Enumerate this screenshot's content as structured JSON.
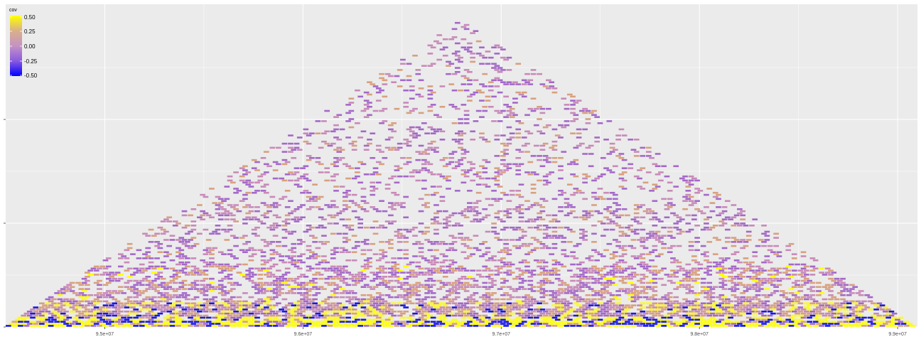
{
  "chart_data": {
    "type": "heatmap",
    "subtype": "triangular-ld-heatmap",
    "title": "",
    "xlabel": "",
    "ylabel": "",
    "x_ticks": [
      {
        "value": 95000000,
        "label": "9.5e+07"
      },
      {
        "value": 96000000,
        "label": "9.6e+07"
      },
      {
        "value": 97000000,
        "label": "9.7e+07"
      },
      {
        "value": 98000000,
        "label": "9.8e+07"
      },
      {
        "value": 99000000,
        "label": "9.9e+07"
      }
    ],
    "xlim": [
      94500000,
      99100000
    ],
    "y_ticks_labeled": false,
    "y_tick_count": 3,
    "grid": true,
    "legend": {
      "title": "cov",
      "placement": "top-left",
      "labels": [
        "0.50",
        "0.25",
        "0.00",
        "-0.25",
        "-0.50"
      ],
      "range": [
        -0.5,
        0.5
      ],
      "colors": {
        "high": "#ffff00",
        "mid": "#c493c4",
        "low": "#0000ff"
      }
    },
    "panel_background": "#ebebeb",
    "gridline_color": "#ffffff",
    "palette": {
      "yellow": "#ffff00",
      "orange_tan": "#d8a07e",
      "pink": "#c88ab8",
      "purple": "#a468c8",
      "blue": "#1818e8"
    },
    "description_bins": [
      {
        "distance_band": "near-diagonal",
        "value": 0.5,
        "dominant": "yellow"
      },
      {
        "distance_band": "near-diagonal",
        "value": -0.5,
        "dominant": "blue"
      },
      {
        "distance_band": "short-range",
        "value": 0.1,
        "dominant": "tan"
      },
      {
        "distance_band": "mid-range",
        "value": 0.0,
        "dominant": "pink"
      },
      {
        "distance_band": "long-range",
        "value": -0.15,
        "dominant": "purple"
      }
    ]
  }
}
